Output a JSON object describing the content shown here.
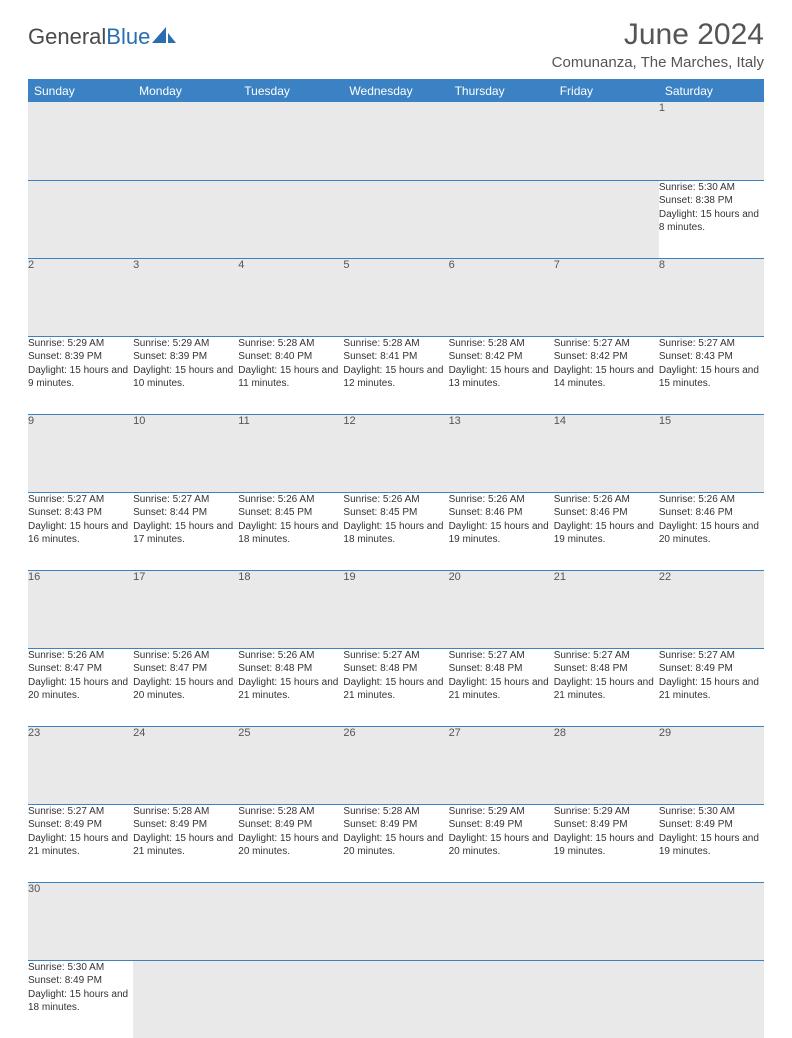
{
  "brand": {
    "part1": "General",
    "part2": "Blue"
  },
  "title": "June 2024",
  "location": "Comunanza, The Marches, Italy",
  "colors": {
    "header_bg": "#3a82c4",
    "header_text": "#ffffff",
    "daynum_bg": "#e9e9e9",
    "border": "#3a82c4",
    "text": "#333333",
    "logo_blue": "#2a6db0"
  },
  "weekdays": [
    "Sunday",
    "Monday",
    "Tuesday",
    "Wednesday",
    "Thursday",
    "Friday",
    "Saturday"
  ],
  "weeks": [
    [
      null,
      null,
      null,
      null,
      null,
      null,
      {
        "n": "1",
        "sr": "Sunrise: 5:30 AM",
        "ss": "Sunset: 8:38 PM",
        "dl": "Daylight: 15 hours and 8 minutes."
      }
    ],
    [
      {
        "n": "2",
        "sr": "Sunrise: 5:29 AM",
        "ss": "Sunset: 8:39 PM",
        "dl": "Daylight: 15 hours and 9 minutes."
      },
      {
        "n": "3",
        "sr": "Sunrise: 5:29 AM",
        "ss": "Sunset: 8:39 PM",
        "dl": "Daylight: 15 hours and 10 minutes."
      },
      {
        "n": "4",
        "sr": "Sunrise: 5:28 AM",
        "ss": "Sunset: 8:40 PM",
        "dl": "Daylight: 15 hours and 11 minutes."
      },
      {
        "n": "5",
        "sr": "Sunrise: 5:28 AM",
        "ss": "Sunset: 8:41 PM",
        "dl": "Daylight: 15 hours and 12 minutes."
      },
      {
        "n": "6",
        "sr": "Sunrise: 5:28 AM",
        "ss": "Sunset: 8:42 PM",
        "dl": "Daylight: 15 hours and 13 minutes."
      },
      {
        "n": "7",
        "sr": "Sunrise: 5:27 AM",
        "ss": "Sunset: 8:42 PM",
        "dl": "Daylight: 15 hours and 14 minutes."
      },
      {
        "n": "8",
        "sr": "Sunrise: 5:27 AM",
        "ss": "Sunset: 8:43 PM",
        "dl": "Daylight: 15 hours and 15 minutes."
      }
    ],
    [
      {
        "n": "9",
        "sr": "Sunrise: 5:27 AM",
        "ss": "Sunset: 8:43 PM",
        "dl": "Daylight: 15 hours and 16 minutes."
      },
      {
        "n": "10",
        "sr": "Sunrise: 5:27 AM",
        "ss": "Sunset: 8:44 PM",
        "dl": "Daylight: 15 hours and 17 minutes."
      },
      {
        "n": "11",
        "sr": "Sunrise: 5:26 AM",
        "ss": "Sunset: 8:45 PM",
        "dl": "Daylight: 15 hours and 18 minutes."
      },
      {
        "n": "12",
        "sr": "Sunrise: 5:26 AM",
        "ss": "Sunset: 8:45 PM",
        "dl": "Daylight: 15 hours and 18 minutes."
      },
      {
        "n": "13",
        "sr": "Sunrise: 5:26 AM",
        "ss": "Sunset: 8:46 PM",
        "dl": "Daylight: 15 hours and 19 minutes."
      },
      {
        "n": "14",
        "sr": "Sunrise: 5:26 AM",
        "ss": "Sunset: 8:46 PM",
        "dl": "Daylight: 15 hours and 19 minutes."
      },
      {
        "n": "15",
        "sr": "Sunrise: 5:26 AM",
        "ss": "Sunset: 8:46 PM",
        "dl": "Daylight: 15 hours and 20 minutes."
      }
    ],
    [
      {
        "n": "16",
        "sr": "Sunrise: 5:26 AM",
        "ss": "Sunset: 8:47 PM",
        "dl": "Daylight: 15 hours and 20 minutes."
      },
      {
        "n": "17",
        "sr": "Sunrise: 5:26 AM",
        "ss": "Sunset: 8:47 PM",
        "dl": "Daylight: 15 hours and 20 minutes."
      },
      {
        "n": "18",
        "sr": "Sunrise: 5:26 AM",
        "ss": "Sunset: 8:48 PM",
        "dl": "Daylight: 15 hours and 21 minutes."
      },
      {
        "n": "19",
        "sr": "Sunrise: 5:27 AM",
        "ss": "Sunset: 8:48 PM",
        "dl": "Daylight: 15 hours and 21 minutes."
      },
      {
        "n": "20",
        "sr": "Sunrise: 5:27 AM",
        "ss": "Sunset: 8:48 PM",
        "dl": "Daylight: 15 hours and 21 minutes."
      },
      {
        "n": "21",
        "sr": "Sunrise: 5:27 AM",
        "ss": "Sunset: 8:48 PM",
        "dl": "Daylight: 15 hours and 21 minutes."
      },
      {
        "n": "22",
        "sr": "Sunrise: 5:27 AM",
        "ss": "Sunset: 8:49 PM",
        "dl": "Daylight: 15 hours and 21 minutes."
      }
    ],
    [
      {
        "n": "23",
        "sr": "Sunrise: 5:27 AM",
        "ss": "Sunset: 8:49 PM",
        "dl": "Daylight: 15 hours and 21 minutes."
      },
      {
        "n": "24",
        "sr": "Sunrise: 5:28 AM",
        "ss": "Sunset: 8:49 PM",
        "dl": "Daylight: 15 hours and 21 minutes."
      },
      {
        "n": "25",
        "sr": "Sunrise: 5:28 AM",
        "ss": "Sunset: 8:49 PM",
        "dl": "Daylight: 15 hours and 20 minutes."
      },
      {
        "n": "26",
        "sr": "Sunrise: 5:28 AM",
        "ss": "Sunset: 8:49 PM",
        "dl": "Daylight: 15 hours and 20 minutes."
      },
      {
        "n": "27",
        "sr": "Sunrise: 5:29 AM",
        "ss": "Sunset: 8:49 PM",
        "dl": "Daylight: 15 hours and 20 minutes."
      },
      {
        "n": "28",
        "sr": "Sunrise: 5:29 AM",
        "ss": "Sunset: 8:49 PM",
        "dl": "Daylight: 15 hours and 19 minutes."
      },
      {
        "n": "29",
        "sr": "Sunrise: 5:30 AM",
        "ss": "Sunset: 8:49 PM",
        "dl": "Daylight: 15 hours and 19 minutes."
      }
    ],
    [
      {
        "n": "30",
        "sr": "Sunrise: 5:30 AM",
        "ss": "Sunset: 8:49 PM",
        "dl": "Daylight: 15 hours and 18 minutes."
      },
      null,
      null,
      null,
      null,
      null,
      null
    ]
  ]
}
